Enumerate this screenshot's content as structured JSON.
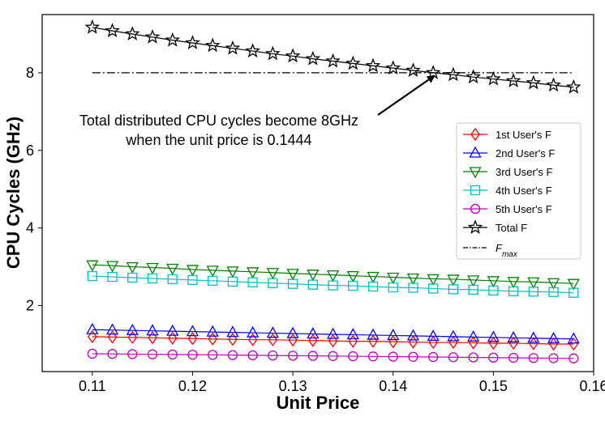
{
  "chart_data": {
    "type": "line",
    "xlabel": "Unit Price",
    "ylabel": "CPU Cycles (GHz)",
    "xlim": [
      0.105,
      0.16
    ],
    "ylim": [
      0.3,
      9.5
    ],
    "xticks": [
      0.11,
      0.12,
      0.13,
      0.14,
      0.15,
      0.16
    ],
    "yticks": [
      2,
      4,
      6,
      8
    ],
    "x": [
      0.11,
      0.112,
      0.114,
      0.116,
      0.118,
      0.12,
      0.122,
      0.124,
      0.126,
      0.128,
      0.13,
      0.132,
      0.134,
      0.136,
      0.138,
      0.14,
      0.142,
      0.144,
      0.146,
      0.148,
      0.15,
      0.152,
      0.154,
      0.156,
      0.158
    ],
    "series": [
      {
        "name": "1st User's F",
        "color": "#ff0000",
        "marker": "diamond",
        "values": [
          1.2,
          1.19,
          1.18,
          1.17,
          1.16,
          1.15,
          1.14,
          1.13,
          1.12,
          1.12,
          1.11,
          1.1,
          1.09,
          1.08,
          1.08,
          1.07,
          1.06,
          1.05,
          1.05,
          1.04,
          1.03,
          1.03,
          1.02,
          1.01,
          1.01
        ]
      },
      {
        "name": "2nd User's F",
        "color": "#0000ff",
        "marker": "triangle-up",
        "values": [
          1.38,
          1.37,
          1.36,
          1.35,
          1.34,
          1.33,
          1.32,
          1.31,
          1.3,
          1.29,
          1.28,
          1.27,
          1.26,
          1.25,
          1.24,
          1.23,
          1.22,
          1.21,
          1.2,
          1.19,
          1.18,
          1.17,
          1.16,
          1.15,
          1.14
        ]
      },
      {
        "name": "3rd User's F",
        "color": "#008000",
        "marker": "triangle-down",
        "values": [
          3.05,
          3.03,
          3.0,
          2.98,
          2.96,
          2.93,
          2.91,
          2.89,
          2.87,
          2.85,
          2.83,
          2.81,
          2.79,
          2.77,
          2.75,
          2.73,
          2.71,
          2.69,
          2.68,
          2.66,
          2.64,
          2.62,
          2.61,
          2.59,
          2.57
        ]
      },
      {
        "name": "4th User's F",
        "color": "#00bfbf",
        "marker": "square",
        "values": [
          2.76,
          2.74,
          2.72,
          2.7,
          2.68,
          2.66,
          2.64,
          2.62,
          2.6,
          2.58,
          2.56,
          2.54,
          2.52,
          2.51,
          2.49,
          2.47,
          2.46,
          2.44,
          2.42,
          2.41,
          2.39,
          2.37,
          2.36,
          2.35,
          2.33
        ]
      },
      {
        "name": "5th User's F",
        "color": "#bf00bf",
        "marker": "circle",
        "values": [
          0.76,
          0.755,
          0.75,
          0.745,
          0.74,
          0.735,
          0.73,
          0.725,
          0.72,
          0.715,
          0.71,
          0.705,
          0.7,
          0.695,
          0.69,
          0.685,
          0.68,
          0.675,
          0.67,
          0.665,
          0.66,
          0.655,
          0.65,
          0.645,
          0.64
        ]
      },
      {
        "name": "Total F",
        "color": "#000000",
        "marker": "star",
        "values": [
          9.17,
          9.08,
          9.0,
          8.92,
          8.84,
          8.77,
          8.7,
          8.63,
          8.56,
          8.49,
          8.43,
          8.36,
          8.3,
          8.24,
          8.18,
          8.12,
          8.06,
          8.0,
          7.95,
          7.89,
          7.84,
          7.79,
          7.74,
          7.68,
          7.63
        ]
      }
    ],
    "reference_line": {
      "name": "F_max",
      "value": 8,
      "style": "dash-dot",
      "color": "#000000"
    },
    "annotation": {
      "lines": [
        "Total distributed CPU cycles become 8GHz",
        "when the unit price is 0.1444"
      ],
      "arrow_to": [
        0.1444,
        8.0
      ]
    },
    "legend_position": "right",
    "grid": false
  }
}
